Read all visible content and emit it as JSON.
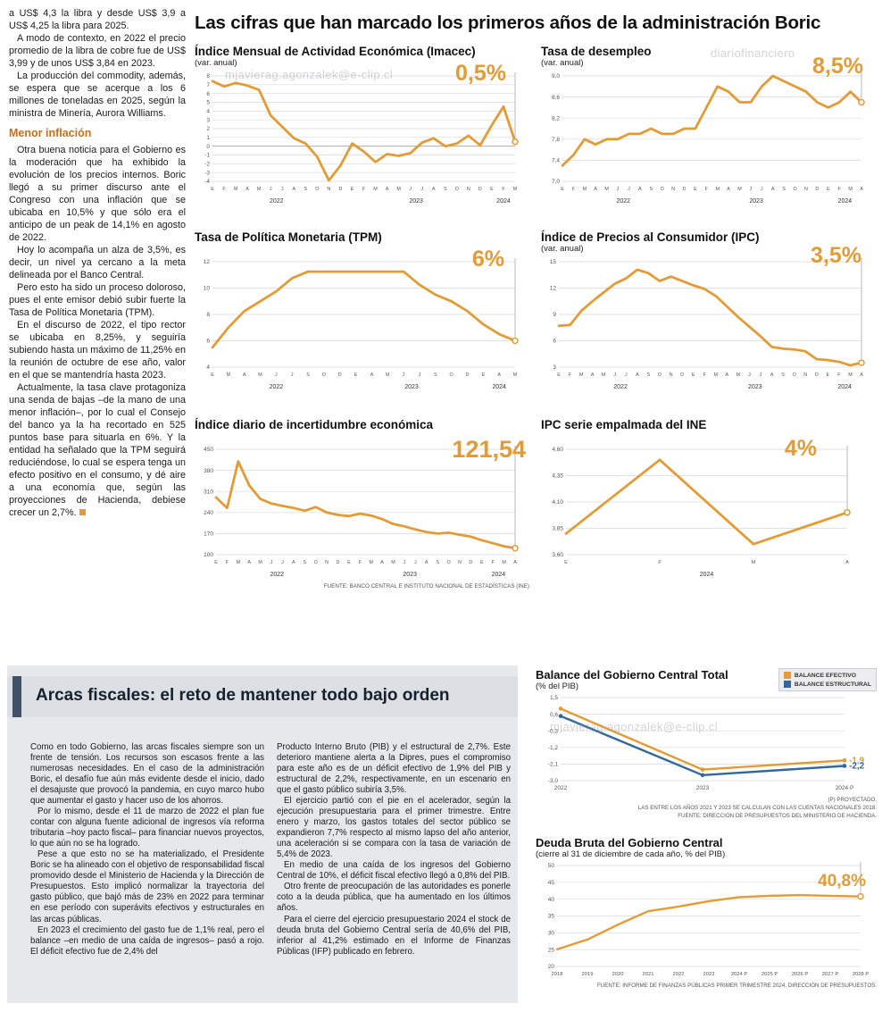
{
  "watermarks": [
    "mjavierag.agonzalek@e-clip.cl",
    "diariofinanciero",
    "mjavierag.agonzalek@e-clip.cl"
  ],
  "main_title": "Las cifras que han marcado los primeros años de la administración Boric",
  "left_article": {
    "paragraphs": [
      "a US$ 4,3 la libra y desde US$ 3,9 a US$ 4,25 la libra para 2025.",
      "A modo de contexto, en 2022 el precio promedio de la libra de cobre fue de US$ 3,99 y de unos US$ 3,84 en 2023.",
      "La producción del commodity, además, se espera que se acerque a los 6 millones de toneladas en 2025, según la ministra de Minería, Aurora Williams."
    ],
    "subhead": "Menor inflación",
    "paragraphs2": [
      "Otra buena noticia para el Gobierno es la moderación que ha exhibido la evolución de los precios internos. Boric llegó a su primer discurso ante el Congreso con una inflación que se ubicaba en 10,5% y que sólo era el anticipo de un peak de 14,1% en agosto de 2022.",
      "Hoy lo acompaña un alza de 3,5%, es decir, un nivel ya cercano a la meta delineada por el Banco Central.",
      "Pero esto ha sido un proceso doloroso, pues el ente emisor debió subir fuerte la Tasa de Política Monetaria (TPM).",
      "En el discurso de 2022, el tipo rector se ubicaba en 8,25%, y seguiría subiendo hasta un máximo de 11,25% en la reunión de octubre de ese año, valor en el que se mantendría hasta 2023.",
      "Actualmente, la tasa clave protagoniza una senda de bajas –de la mano de una menor inflación–, por lo cual el Consejo del banco ya la ha recortado en 525 puntos base para situarla en 6%. Y la entidad ha señalado que la TPM seguirá reduciéndose, lo cual se espera tenga un efecto positivo en el consumo, y dé aire a una economía que, según las proyecciones de Hacienda, debiese crecer un 2,7%."
    ]
  },
  "fiscal": {
    "title": "Arcas fiscales: el reto de mantener todo bajo orden",
    "col1": [
      "Como en todo Gobierno, las arcas fiscales siempre son un frente de tensión. Los recursos son escasos frente a las numerosas necesidades. En el caso de la administración Boric, el desafío fue aún más evidente desde el inicio, dado el desajuste que provocó la pandemia, en cuyo marco hubo que aumentar el gasto y hacer uso de los ahorros.",
      "Por lo mismo, desde el 11 de marzo de 2022 el plan fue contar con alguna fuente adicional de ingresos vía reforma tributaria –hoy pacto fiscal– para financiar nuevos proyectos, lo que aún no se ha logrado.",
      "Pese a que esto no se ha materializado, el Presidente Boric se ha alineado con el objetivo de responsabilidad fiscal promovido desde el Ministerio de Hacienda y la Dirección de Presupuestos. Esto implicó normalizar la trayectoria del gasto público, que bajó más de 23% en 2022 para terminar en ese período con superávits efectivos y estructurales en las arcas públicas.",
      "En 2023 el crecimiento del gasto fue de 1,1% real, pero el balance –en medio de una caída de ingresos– pasó a rojo. El déficit efectivo fue de 2,4% del"
    ],
    "col2": [
      "Producto Interno Bruto (PIB) y el estructural de 2,7%. Este deterioro mantiene alerta a la Dipres, pues el compromiso para este año es de un déficit efectivo de 1,9% del PIB y estructural de 2,2%, respectivamente, en un escenario en que el gasto público subiría 3,5%.",
      "El ejercicio partió con el pie en el acelerador, según la ejecución presupuestaria para el primer trimestre. Entre enero y marzo, los gastos totales del sector público se expandieron 7,7% respecto al mismo lapso del año anterior, una aceleración si se compara con la tasa de variación de 5,4% de 2023.",
      "En medio de una caída de los ingresos del Gobierno Central de 10%, el déficit fiscal efectivo llegó a 0,8% del PIB.",
      "Otro frente de preocupación de las autoridades es ponerle coto a la deuda pública, que ha aumentado en los últimos años.",
      "Para el cierre del ejercicio presupuestario 2024 el stock de deuda bruta del Gobierno Central sería de 40,6% del PIB, inferior al 41,2% estimado en el Informe de Finanzas Públicas (IFP) publicado en febrero."
    ]
  },
  "colors": {
    "accent_orange": "#E39B35",
    "line_blue": "#33689E",
    "subhead_orange": "#C2701E",
    "panel_bg": "#E6E8EB",
    "accent_bar": "#3F5166"
  },
  "chart_data": [
    {
      "id": "imacec",
      "type": "line",
      "title": "Índice Mensual de Actividad Económica (Imacec)",
      "subtitle": "(var. anual)",
      "big_value": "0,5%",
      "ylim": [
        -4,
        8
      ],
      "yticks": [
        8,
        7,
        6,
        5,
        4,
        3,
        2,
        1,
        0,
        -1,
        -2,
        -3,
        -4
      ],
      "ytick_labels": [
        "8",
        "7",
        "6",
        "5",
        "4",
        "3",
        "2",
        "1",
        "0",
        "-1",
        "-2",
        "-3",
        "-4"
      ],
      "x_labels": [
        "E",
        "F",
        "M",
        "A",
        "M",
        "J",
        "J",
        "A",
        "S",
        "O",
        "N",
        "D",
        "E",
        "F",
        "M",
        "A",
        "M",
        "J",
        "J",
        "A",
        "S",
        "O",
        "N",
        "D",
        "E",
        "F",
        "M"
      ],
      "year_spans": [
        {
          "label": "2022",
          "from": 0,
          "to": 11
        },
        {
          "label": "2023",
          "from": 12,
          "to": 23
        },
        {
          "label": "2024",
          "from": 24,
          "to": 26
        }
      ],
      "margins": {
        "l": 20
      },
      "series": [
        {
          "name": "Imacec",
          "color": "#E39B35",
          "values": [
            7.4,
            6.8,
            7.2,
            6.9,
            6.4,
            3.5,
            2.2,
            0.9,
            0.3,
            -1.2,
            -3.9,
            -2.2,
            0.3,
            -0.6,
            -1.8,
            -0.9,
            -1.1,
            -0.8,
            0.4,
            0.9,
            0.0,
            0.3,
            1.2,
            0.1,
            2.4,
            4.5,
            0.5
          ]
        }
      ]
    },
    {
      "id": "desempleo",
      "type": "line",
      "title": "Tasa de desempleo",
      "subtitle": "(var. anual)",
      "big_value": "8,5%",
      "ylim": [
        7.0,
        9.0
      ],
      "yticks": [
        9.0,
        8.6,
        8.2,
        7.8,
        7.4,
        7.0
      ],
      "ytick_labels": [
        "9,0",
        "8,6",
        "8,2",
        "7,8",
        "7,4",
        "7,0"
      ],
      "x_labels": [
        "E",
        "F",
        "M",
        "A",
        "M",
        "J",
        "J",
        "A",
        "S",
        "O",
        "N",
        "D",
        "E",
        "F",
        "M",
        "A",
        "M",
        "J",
        "J",
        "A",
        "S",
        "O",
        "N",
        "D",
        "E",
        "F",
        "M",
        "A"
      ],
      "year_spans": [
        {
          "label": "2022",
          "from": 0,
          "to": 11
        },
        {
          "label": "2023",
          "from": 12,
          "to": 23
        },
        {
          "label": "2024",
          "from": 24,
          "to": 27
        }
      ],
      "margins": {
        "l": 24
      },
      "series": [
        {
          "name": "Tasa de desempleo",
          "color": "#E39B35",
          "values": [
            7.3,
            7.5,
            7.8,
            7.7,
            7.8,
            7.8,
            7.9,
            7.9,
            8.0,
            7.9,
            7.9,
            8.0,
            8.0,
            8.4,
            8.8,
            8.7,
            8.5,
            8.5,
            8.8,
            9.0,
            8.9,
            8.8,
            8.7,
            8.5,
            8.4,
            8.5,
            8.7,
            8.5
          ]
        }
      ]
    },
    {
      "id": "tpm",
      "type": "line",
      "title": "Tasa de Política Monetaria (TPM)",
      "subtitle": "",
      "big_value": "6%",
      "ylim": [
        4,
        12
      ],
      "yticks": [
        12,
        10,
        8,
        6,
        4
      ],
      "ytick_labels": [
        "12",
        "10",
        "8",
        "6",
        "4"
      ],
      "x_labels": [
        "E",
        "M",
        "A",
        "M",
        "J",
        "J",
        "S",
        "O",
        "D",
        "E",
        "A",
        "M",
        "J",
        "J",
        "S",
        "O",
        "D",
        "E",
        "A",
        "M"
      ],
      "year_spans": [
        {
          "label": "2022",
          "from": 0,
          "to": 8
        },
        {
          "label": "2023",
          "from": 9,
          "to": 16
        },
        {
          "label": "2024",
          "from": 17,
          "to": 19
        }
      ],
      "margins": {
        "l": 20
      },
      "series": [
        {
          "name": "TPM",
          "color": "#E39B35",
          "values": [
            5.5,
            7.0,
            8.25,
            9.0,
            9.75,
            10.75,
            11.25,
            11.25,
            11.25,
            11.25,
            11.25,
            11.25,
            11.25,
            10.25,
            9.5,
            9.0,
            8.25,
            7.25,
            6.5,
            6.0
          ]
        }
      ]
    },
    {
      "id": "ipc",
      "type": "line",
      "title": "Índice de Precios al Consumidor (IPC)",
      "subtitle": "(var. anual)",
      "big_value": "3,5%",
      "ylim": [
        3,
        15
      ],
      "yticks": [
        15,
        12,
        9,
        6,
        3
      ],
      "ytick_labels": [
        "15",
        "12",
        "9",
        "6",
        "3"
      ],
      "x_labels": [
        "E",
        "F",
        "M",
        "A",
        "M",
        "J",
        "J",
        "A",
        "S",
        "O",
        "N",
        "D",
        "E",
        "F",
        "M",
        "A",
        "M",
        "J",
        "J",
        "A",
        "S",
        "O",
        "N",
        "D",
        "E",
        "F",
        "M",
        "A"
      ],
      "year_spans": [
        {
          "label": "2022",
          "from": 0,
          "to": 11
        },
        {
          "label": "2023",
          "from": 12,
          "to": 23
        },
        {
          "label": "2024",
          "from": 24,
          "to": 27
        }
      ],
      "margins": {
        "l": 20
      },
      "series": [
        {
          "name": "IPC",
          "color": "#E39B35",
          "values": [
            7.7,
            7.8,
            9.4,
            10.5,
            11.5,
            12.5,
            13.1,
            14.1,
            13.7,
            12.8,
            13.3,
            12.8,
            12.3,
            11.9,
            11.1,
            9.9,
            8.7,
            7.6,
            6.5,
            5.3,
            5.1,
            5.0,
            4.8,
            3.9,
            3.8,
            3.6,
            3.2,
            3.5
          ]
        }
      ]
    },
    {
      "id": "incertidumbre",
      "type": "line",
      "title": "Índice diario de incertidumbre económica",
      "subtitle": "",
      "big_value": "121,54",
      "ylim": [
        100,
        450
      ],
      "yticks": [
        450,
        380,
        310,
        240,
        170,
        100
      ],
      "ytick_labels": [
        "450",
        "380",
        "310",
        "240",
        "170",
        "100"
      ],
      "x_labels": [
        "E",
        "F",
        "M",
        "A",
        "M",
        "J",
        "J",
        "A",
        "S",
        "O",
        "N",
        "D",
        "E",
        "F",
        "M",
        "A",
        "M",
        "J",
        "J",
        "A",
        "S",
        "O",
        "N",
        "D",
        "E",
        "F",
        "M",
        "A"
      ],
      "year_spans": [
        {
          "label": "2022",
          "from": 0,
          "to": 11
        },
        {
          "label": "2023",
          "from": 12,
          "to": 23
        },
        {
          "label": "2024",
          "from": 24,
          "to": 27
        }
      ],
      "margins": {
        "l": 24
      },
      "source": "FUENTE: BANCO CENTRAL E INSTITUTO NACIONAL DE ESTADÍSTICAS (INE)",
      "series": [
        {
          "name": "Incertidumbre económica",
          "color": "#E39B35",
          "values": [
            290,
            255,
            410,
            330,
            285,
            270,
            262,
            255,
            246,
            258,
            240,
            232,
            228,
            236,
            230,
            218,
            202,
            194,
            184,
            175,
            170,
            173,
            166,
            160,
            148,
            138,
            128,
            121.54
          ]
        }
      ]
    },
    {
      "id": "ipc-ine",
      "type": "line",
      "title": "IPC serie empalmada del INE",
      "subtitle": "",
      "big_value": "4%",
      "ylim": [
        3.6,
        4.6
      ],
      "yticks": [
        4.6,
        4.35,
        4.1,
        3.85,
        3.6
      ],
      "ytick_labels": [
        "4,60",
        "4,35",
        "4,10",
        "3,85",
        "3,60"
      ],
      "x_labels": [
        "E",
        "F",
        "M",
        "A"
      ],
      "year_spans": [
        {
          "label": "2024",
          "from": 0,
          "to": 3
        }
      ],
      "margins": {
        "l": 28,
        "r": 30
      },
      "series": [
        {
          "name": "IPC serie empalmada",
          "color": "#E39B35",
          "values": [
            3.8,
            4.5,
            3.7,
            4.0
          ]
        }
      ]
    },
    {
      "id": "balance",
      "type": "line",
      "title": "Balance del Gobierno Central Total",
      "subtitle": "(% del PIB)",
      "big_value": "",
      "ylim": [
        -3.0,
        1.5
      ],
      "yticks": [
        1.5,
        0.6,
        -0.3,
        -1.2,
        -2.1,
        -3.0
      ],
      "ytick_labels": [
        "1,5",
        "0,6",
        "-0,3",
        "-1,2",
        "-2,1",
        "-3,0"
      ],
      "x_labels": [
        "2022",
        "2023",
        "2024 P"
      ],
      "xlabel_size": 6.5,
      "margins": {
        "l": 28,
        "r": 34,
        "t": 6,
        "b": 13
      },
      "stroke": 2.4,
      "end_circle": false,
      "guide": false,
      "point_markers": true,
      "legend": [
        {
          "label": "BALANCE EFECTIVO",
          "color": "#E39B35"
        },
        {
          "label": "BALANCE ESTRUCTURAL",
          "color": "#33689E"
        }
      ],
      "sources": [
        "(P) PROYECTADO.",
        "LAS ENTRE LOS AÑOS 2021 Y 2023 SE CALCULAN  CON LAS CUENTAS NACIONALES 2018.",
        "FUENTE: DIRECCIÓN DE PRESUPUESTOS DEL MINISTERIO DE HACIENDA."
      ],
      "series": [
        {
          "name": "Balance efectivo",
          "color": "#E39B35",
          "end_label": "-1,9",
          "values": [
            0.9,
            -2.4,
            -1.9
          ]
        },
        {
          "name": "Balance estructural",
          "color": "#33689E",
          "end_label": "-2,2",
          "values": [
            0.5,
            -2.7,
            -2.2
          ]
        }
      ]
    },
    {
      "id": "deuda",
      "type": "line",
      "title": "Deuda Bruta del Gobierno Central",
      "subtitle": "(cierre al 31 de diciembre de cada año, % del PIB)",
      "big_value": "40,8%",
      "ylim": [
        20,
        50
      ],
      "yticks": [
        50,
        45,
        40,
        35,
        30,
        25,
        20
      ],
      "ytick_labels": [
        "50",
        "45",
        "40",
        "35",
        "30",
        "25",
        "20"
      ],
      "x_labels": [
        "2018",
        "2019",
        "2020",
        "2021",
        "2022",
        "2023",
        "2024 P",
        "2025 P",
        "2026 P",
        "2027 P",
        "2028 P"
      ],
      "xlabel_size": 5.8,
      "margins": {
        "l": 24,
        "r": 16,
        "t": 6,
        "b": 13
      },
      "stroke": 2.4,
      "source": "FUENTE: INFORME DE FINANZAS PÚBLICAS PRIMER TRIMESTRE 2024, DIRECCIÓN DE PRESUPUESTOS.",
      "series": [
        {
          "name": "Deuda bruta",
          "color": "#E39B35",
          "values": [
            25.1,
            28.0,
            32.4,
            36.4,
            37.8,
            39.4,
            40.6,
            41.0,
            41.2,
            41.0,
            40.8
          ]
        }
      ]
    }
  ]
}
